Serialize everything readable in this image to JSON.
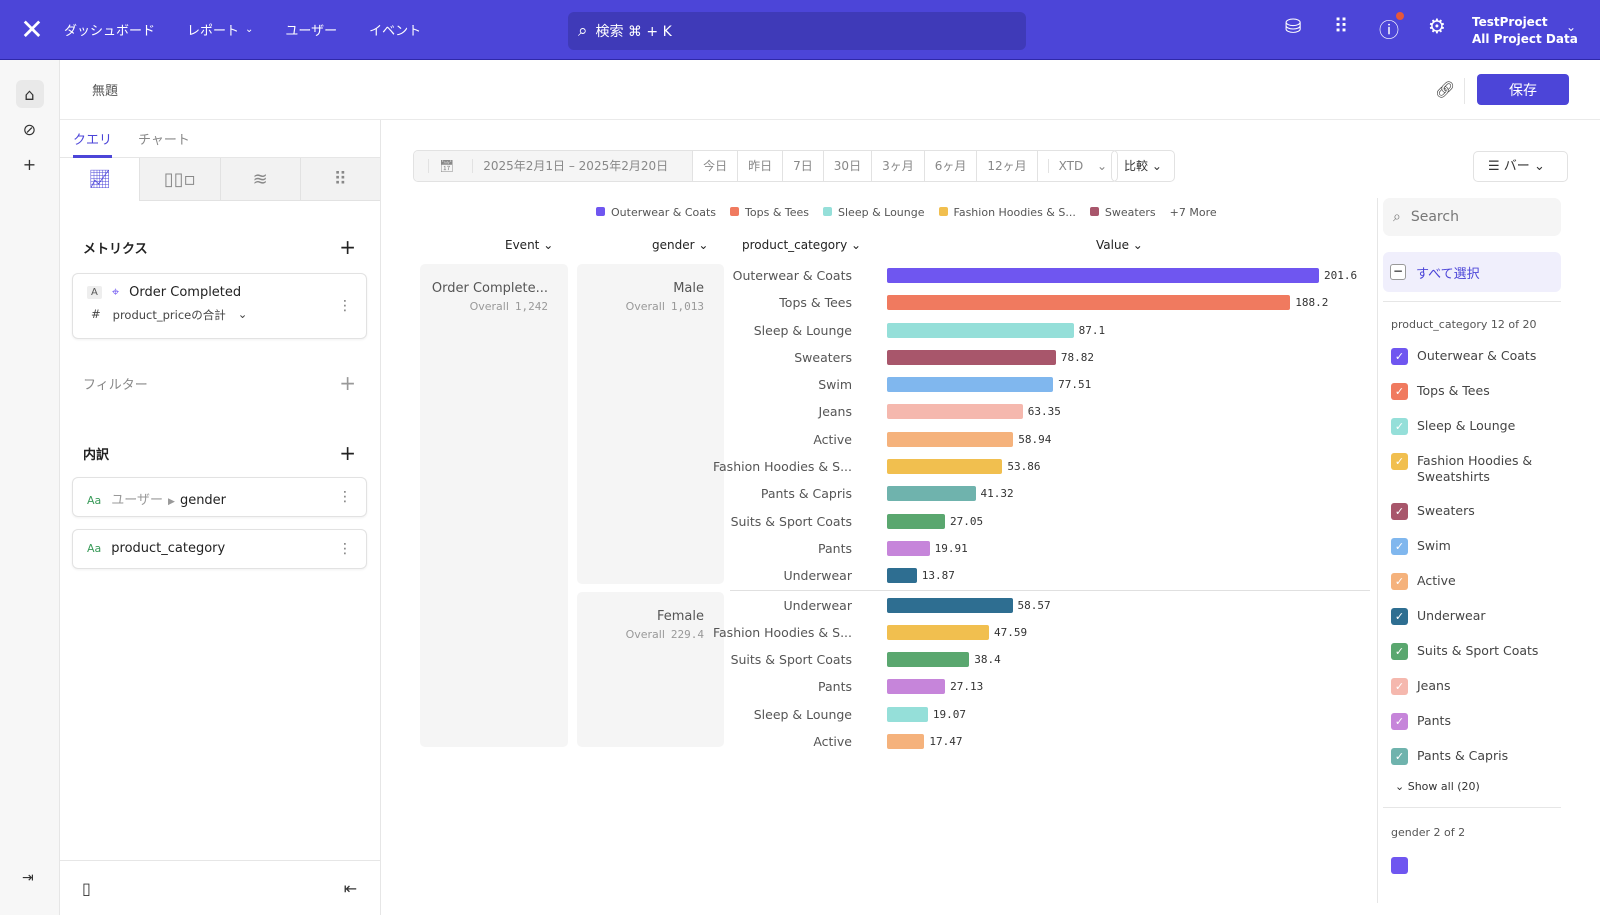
{
  "topbar": {
    "nav": [
      "ダッシュボード",
      "レポート",
      "ユーザー",
      "イベント"
    ],
    "search": "検索 ⌘ + K",
    "project": "TestProject",
    "project_sub": "All Project Data"
  },
  "title": "無題",
  "save": "保存",
  "left": {
    "tabs": [
      "クエリ",
      "チャート"
    ],
    "metrics": "メトリクス",
    "metric_badge": "A",
    "metric_event": "Order Completed",
    "metric_agg": "product_priceの合計",
    "filters": "フィルター",
    "breakdown": "内訳",
    "bd1_prefix": "ユーザー",
    "bd1": "gender",
    "bd2": "product_category",
    "aa": "Aa"
  },
  "controls": {
    "date": "2025年2月1日 – 2025年2月20日",
    "ranges": [
      "今日",
      "昨日",
      "7日",
      "30日",
      "3ヶ月",
      "6ヶ月",
      "12ヶ月",
      "XTD"
    ],
    "compare": "比較",
    "chart_type": "バー"
  },
  "legend": {
    "items": [
      "Outerwear & Coats",
      "Tops & Tees",
      "Sleep & Lounge",
      "Fashion Hoodies & S...",
      "Sweaters"
    ],
    "more": "+7 More"
  },
  "headers": {
    "event": "Event",
    "gender": "gender",
    "category": "product_category",
    "value": "Value"
  },
  "panels": {
    "event": "Order Complete...",
    "event_total": "1,242",
    "male": "Male",
    "male_total": "1,013",
    "female": "Female",
    "female_total": "229.4",
    "overall": "Overall"
  },
  "colors": {
    "Outerwear & Coats": "#6f56f0",
    "Tops & Tees": "#f07a5f",
    "Sleep & Lounge": "#95dfd9",
    "Sweaters": "#a8566b",
    "Swim": "#80b7ee",
    "Jeans": "#f5b8ae",
    "Active": "#f5b27c",
    "Fashion Hoodies & S...": "#f1bf4f",
    "Fashion Hoodies & Sweatshirts": "#f1bf4f",
    "Pants & Capris": "#6fb3ad",
    "Suits & Sport Coats": "#5aa76f",
    "Pants": "#c685da",
    "Underwear": "#2e6e91"
  },
  "chart_data": {
    "type": "bar",
    "orientation": "horizontal",
    "groups": [
      {
        "name": "Male",
        "categories": [
          "Outerwear & Coats",
          "Tops & Tees",
          "Sleep & Lounge",
          "Sweaters",
          "Swim",
          "Jeans",
          "Active",
          "Fashion Hoodies & S...",
          "Pants & Capris",
          "Suits & Sport Coats",
          "Pants",
          "Underwear"
        ],
        "values": [
          201.6,
          188.2,
          87.1,
          78.82,
          77.51,
          63.35,
          58.94,
          53.86,
          41.32,
          27.05,
          19.91,
          13.87
        ]
      },
      {
        "name": "Female",
        "categories": [
          "Underwear",
          "Fashion Hoodies & S...",
          "Suits & Sport Coats",
          "Pants",
          "Sleep & Lounge",
          "Active"
        ],
        "values": [
          58.57,
          47.59,
          38.4,
          27.13,
          19.07,
          17.47
        ]
      }
    ],
    "xlim": [
      0,
      201.6
    ]
  },
  "filter": {
    "search_placeholder": "Search",
    "select_all": "すべて選択",
    "caption": "product_category 12 of 20",
    "items": [
      "Outerwear & Coats",
      "Tops & Tees",
      "Sleep & Lounge",
      "Fashion Hoodies & Sweatshirts",
      "Sweaters",
      "Swim",
      "Active",
      "Underwear",
      "Suits & Sport Coats",
      "Jeans",
      "Pants",
      "Pants & Capris"
    ],
    "show_all": "Show all (20)",
    "gender_caption": "gender 2 of 2"
  }
}
